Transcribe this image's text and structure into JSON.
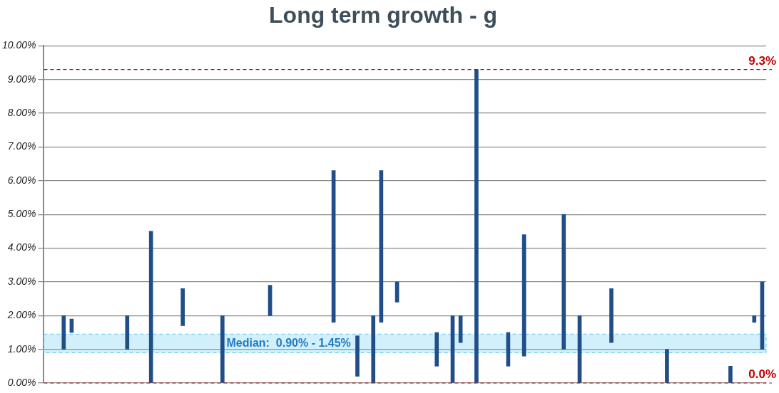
{
  "chart_data": {
    "type": "bar",
    "title": "Long term growth - g",
    "categories": [
      null,
      null,
      null,
      null,
      null,
      null,
      null,
      null,
      null,
      null,
      null,
      null,
      null,
      null,
      null,
      null,
      null,
      null,
      null,
      null,
      null,
      null,
      null,
      null,
      null,
      null,
      null,
      null,
      null,
      null,
      null,
      null,
      null,
      null,
      null,
      null,
      null,
      null,
      null,
      null,
      null,
      null,
      null,
      null,
      null,
      null,
      null,
      null,
      null,
      null,
      null,
      null,
      null,
      null,
      null,
      null,
      null,
      null,
      null,
      null,
      null,
      null,
      null,
      null,
      null,
      null,
      null,
      null,
      null,
      null,
      null,
      null,
      null,
      null,
      null,
      null,
      null,
      null,
      null,
      null,
      null,
      null,
      null,
      null,
      null,
      null,
      null,
      null,
      null,
      null,
      null
    ],
    "values": [
      null,
      null,
      1.0,
      0.4,
      null,
      null,
      null,
      null,
      null,
      null,
      1.0,
      null,
      null,
      4.5,
      null,
      null,
      null,
      1.1,
      null,
      null,
      null,
      null,
      2.0,
      null,
      null,
      null,
      null,
      null,
      0.9,
      null,
      null,
      null,
      null,
      null,
      null,
      null,
      4.5,
      null,
      null,
      1.2,
      null,
      2.0,
      4.5,
      null,
      0.6,
      null,
      null,
      null,
      null,
      1.0,
      null,
      2.0,
      0.8,
      null,
      9.3,
      null,
      null,
      null,
      1.0,
      null,
      3.6,
      null,
      null,
      null,
      null,
      4.0,
      null,
      2.0,
      null,
      null,
      null,
      1.6,
      null,
      null,
      null,
      null,
      null,
      null,
      1.0,
      null,
      null,
      null,
      null,
      null,
      null,
      null,
      0.5,
      null,
      null,
      0.2,
      2.0
    ],
    "base": [
      null,
      null,
      1.0,
      1.5,
      null,
      null,
      null,
      null,
      null,
      null,
      1.0,
      null,
      null,
      0,
      null,
      null,
      null,
      1.7,
      null,
      null,
      null,
      null,
      0,
      null,
      null,
      null,
      null,
      null,
      2.0,
      null,
      null,
      null,
      null,
      null,
      null,
      null,
      1.8,
      null,
      null,
      0.2,
      null,
      0,
      1.8,
      null,
      2.4,
      null,
      null,
      null,
      null,
      0.5,
      null,
      0,
      1.2,
      null,
      0,
      null,
      null,
      null,
      0.5,
      null,
      0.8,
      null,
      null,
      null,
      null,
      1.0,
      null,
      0,
      null,
      null,
      null,
      1.2,
      null,
      null,
      null,
      null,
      null,
      null,
      0,
      null,
      null,
      null,
      null,
      null,
      null,
      null,
      0,
      null,
      null,
      1.8,
      1.0
    ],
    "color": "#1f4e89",
    "ylim": [
      0,
      10
    ],
    "yticks": [
      {
        "value": 0,
        "label": "0.00%"
      },
      {
        "value": 1,
        "label": "1.00%"
      },
      {
        "value": 2,
        "label": "2.00%"
      },
      {
        "value": 3,
        "label": "3.00%"
      },
      {
        "value": 4,
        "label": "4.00%"
      },
      {
        "value": 5,
        "label": "5.00%"
      },
      {
        "value": 6,
        "label": "6.00%"
      },
      {
        "value": 7,
        "label": "7.00%"
      },
      {
        "value": 8,
        "label": "8.00%"
      },
      {
        "value": 9,
        "label": "9.00%"
      },
      {
        "value": 10,
        "label": "10.00%"
      }
    ],
    "grid": "y",
    "tick_labels": "y",
    "ref_lines": [
      {
        "axis": "y",
        "value": 9.3,
        "label": "9.3%",
        "color": "#c00000",
        "line_style": "dashed"
      },
      {
        "axis": "y",
        "value": 0,
        "label": "0.0%",
        "color": "#c00000",
        "line_style": "dashed"
      }
    ],
    "bands": [
      {
        "axis": "y",
        "from": 0.9,
        "to": 1.45,
        "label": "Median:  0.90% - 1.45%",
        "color": "#5bc8f0"
      }
    ]
  }
}
